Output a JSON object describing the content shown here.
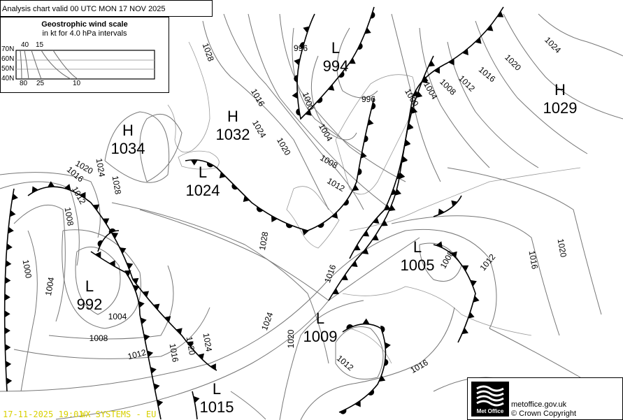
{
  "header": {
    "title": "Analysis chart valid 00 UTC MON 17  NOV 2025"
  },
  "wind_scale": {
    "title": "Geostrophic wind scale",
    "subtitle": "in kt for 4.0 hPa intervals",
    "latitudes": [
      "70N",
      "60N",
      "50N",
      "40N"
    ],
    "top_labels": [
      "40",
      "15"
    ],
    "bottom_labels": [
      "80",
      "25",
      "10"
    ]
  },
  "pressure_centres": [
    {
      "type": "H",
      "value": "1034"
    },
    {
      "type": "H",
      "value": "1032"
    },
    {
      "type": "L",
      "value": "1024"
    },
    {
      "type": "L",
      "value": "994"
    },
    {
      "type": "H",
      "value": "1029"
    },
    {
      "type": "L",
      "value": "992"
    },
    {
      "type": "L",
      "value": "1005"
    },
    {
      "type": "L",
      "value": "1009"
    },
    {
      "type": "L",
      "value": "1015"
    }
  ],
  "isobar_labels": [
    "1028",
    "1016",
    "1024",
    "1020",
    "1008",
    "1012",
    "1004",
    "1000",
    "996",
    "996",
    "1000",
    "1004",
    "1008",
    "1012",
    "1016",
    "1020",
    "1024",
    "1020",
    "1016",
    "1012",
    "1024",
    "1028",
    "1008",
    "1000",
    "1004",
    "1004",
    "1008",
    "1012",
    "1016",
    "1020",
    "1024",
    "1028",
    "1024",
    "1020",
    "1016",
    "1012",
    "1016",
    "1008",
    "1012",
    "1016",
    "1020"
  ],
  "footer": {
    "timestamp": "17-11-2025 19:01",
    "source": "WX SYSTEMS - EU",
    "logo": "Met Office",
    "website": "metoffice.gov.uk",
    "copyright": "© Crown Copyright"
  },
  "colors": {
    "isobar": "#777777",
    "front": "#000000",
    "stamp": "#d8d000"
  }
}
